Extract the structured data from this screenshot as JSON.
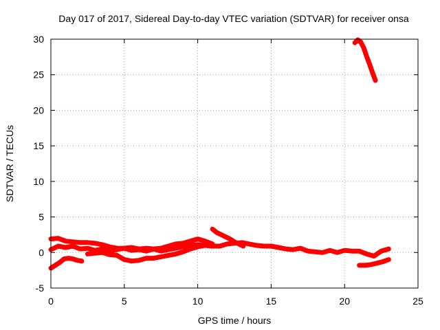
{
  "chart_data": {
    "type": "scatter",
    "title": "Day 017 of 2017, Sidereal Day-to-day VTEC variation (SDTVAR) for receiver onsa",
    "xlabel": "GPS time / hours",
    "ylabel": "SDTVAR / TECUs",
    "xlim": [
      0,
      25
    ],
    "ylim": [
      -5,
      30
    ],
    "xticks": [
      0,
      5,
      10,
      15,
      20,
      25
    ],
    "yticks": [
      -5,
      0,
      5,
      10,
      15,
      20,
      25,
      30
    ],
    "grid": true,
    "legend": "none",
    "series": [
      {
        "name": "arc-upper-band",
        "color": "#ff0000",
        "x": [
          0.0,
          0.5,
          1.0,
          1.5,
          2.0,
          2.5,
          3.0,
          3.5,
          4.0,
          4.5,
          5.0,
          5.5,
          6.0,
          6.5,
          7.0,
          7.5,
          8.0,
          8.5,
          9.0,
          9.5,
          10.0,
          10.5,
          11.0
        ],
        "y": [
          1.9,
          2.0,
          1.6,
          1.5,
          1.4,
          1.4,
          1.3,
          1.1,
          0.8,
          0.6,
          0.6,
          0.7,
          0.5,
          0.6,
          0.5,
          0.6,
          0.9,
          1.2,
          1.3,
          1.6,
          1.9,
          1.6,
          1.2
        ]
      },
      {
        "name": "arc-middle-band",
        "color": "#ff0000",
        "x": [
          0.0,
          0.5,
          1.0,
          1.5,
          2.0,
          2.5,
          3.0,
          3.5,
          4.0,
          4.5,
          5.0,
          5.5,
          6.0,
          6.5,
          7.0,
          7.5,
          8.0,
          8.5,
          9.0,
          9.5,
          10.0,
          10.5,
          11.0,
          11.5,
          12.0,
          12.5,
          13.0,
          13.5,
          14.0,
          14.5,
          15.0,
          15.5,
          16.0,
          16.5,
          17.0,
          17.5,
          18.0,
          18.5,
          19.0,
          19.5,
          20.0,
          20.5,
          21.0,
          21.5,
          22.0,
          22.5,
          23.0
        ],
        "y": [
          0.4,
          0.9,
          0.7,
          0.9,
          0.5,
          0.6,
          0.3,
          0.5,
          0.2,
          0.4,
          0.6,
          0.3,
          0.4,
          0.2,
          0.5,
          0.2,
          0.4,
          0.6,
          0.8,
          1.0,
          1.1,
          1.0,
          0.9,
          0.9,
          1.2,
          1.3,
          1.4,
          1.2,
          1.0,
          0.9,
          0.9,
          0.7,
          0.5,
          0.4,
          0.6,
          0.2,
          0.1,
          0.0,
          0.3,
          0.0,
          0.3,
          0.2,
          0.2,
          -0.2,
          -0.5,
          0.2,
          0.5
        ]
      },
      {
        "name": "arc-lower-band",
        "color": "#ff0000",
        "x": [
          2.5,
          3.0,
          3.5,
          4.0,
          4.5,
          5.0,
          5.5,
          6.0,
          6.5,
          7.0,
          7.5,
          8.0,
          8.5,
          9.0,
          9.5,
          10.0,
          10.5,
          11.0
        ],
        "y": [
          -0.2,
          -0.1,
          0.0,
          -0.3,
          -0.4,
          -1.0,
          -1.2,
          -1.1,
          -0.8,
          -0.8,
          -0.6,
          -0.4,
          -0.2,
          0.1,
          0.5,
          0.8,
          1.0,
          0.9
        ]
      },
      {
        "name": "arc-early-descending",
        "color": "#ff0000",
        "x": [
          0.0,
          0.3,
          0.6,
          0.9,
          1.2,
          1.5,
          1.8,
          2.1
        ],
        "y": [
          -2.2,
          -1.8,
          -1.4,
          -0.9,
          -0.8,
          -0.9,
          -1.1,
          -1.2
        ]
      },
      {
        "name": "arc-midday-bump",
        "color": "#ff0000",
        "x": [
          11.0,
          11.3,
          11.6,
          11.9,
          12.2,
          12.5,
          12.8,
          13.1
        ],
        "y": [
          3.3,
          2.8,
          2.5,
          2.2,
          1.9,
          1.5,
          1.2,
          0.9
        ]
      },
      {
        "name": "arc-late-low",
        "color": "#ff0000",
        "x": [
          21.0,
          21.4,
          21.8,
          22.2,
          22.6,
          23.0
        ],
        "y": [
          -1.8,
          -1.8,
          -1.7,
          -1.5,
          -1.3,
          -1.0
        ]
      },
      {
        "name": "arc-late-spike",
        "color": "#ff0000",
        "x": [
          20.7,
          20.9,
          21.1,
          21.3,
          21.5,
          21.7,
          21.9,
          22.1
        ],
        "y": [
          29.5,
          29.9,
          29.6,
          28.8,
          27.6,
          26.5,
          25.3,
          24.2
        ]
      }
    ]
  }
}
